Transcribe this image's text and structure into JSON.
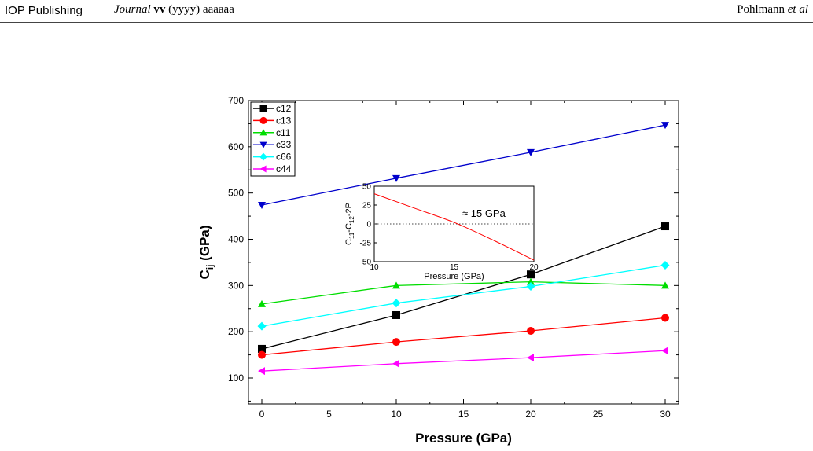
{
  "header": {
    "publisher": "IOP Publishing",
    "journal_name": "Journal",
    "journal_volume": "vv",
    "journal_year": "(yyyy)",
    "journal_article": "aaaaaa",
    "author": "Pohlmann",
    "author_suffix": "et al"
  },
  "chart_data": [
    {
      "type": "line",
      "xlabel": "Pressure (GPa)",
      "ylabel_main": "C",
      "ylabel_sub": "ij",
      "ylabel_unit": "(GPa)",
      "xlim": [
        -2,
        32
      ],
      "ylim": [
        50,
        700
      ],
      "x_ticks": [
        0,
        5,
        10,
        15,
        20,
        25,
        30
      ],
      "y_ticks": [
        100,
        200,
        300,
        400,
        500,
        600,
        700
      ],
      "legend_placement": "top-left",
      "x": [
        0,
        10,
        20,
        30
      ],
      "series": [
        {
          "name": "c12",
          "color": "#000000",
          "marker": "square",
          "values": [
            163,
            236,
            324,
            428
          ]
        },
        {
          "name": "c13",
          "color": "#ff0000",
          "marker": "circle",
          "values": [
            150,
            178,
            202,
            230
          ]
        },
        {
          "name": "c11",
          "color": "#00dd00",
          "marker": "triangle-up",
          "values": [
            260,
            300,
            308,
            300
          ]
        },
        {
          "name": "c33",
          "color": "#0000cc",
          "marker": "triangle-down",
          "values": [
            474,
            532,
            588,
            647
          ]
        },
        {
          "name": "c66",
          "color": "#00ffff",
          "marker": "diamond",
          "values": [
            212,
            262,
            298,
            344
          ]
        },
        {
          "name": "c44",
          "color": "#ff00ff",
          "marker": "triangle-left",
          "values": [
            115,
            131,
            144,
            159
          ]
        }
      ]
    },
    {
      "type": "line",
      "xlabel": "Pressure (GPa)",
      "ylabel_parts": [
        "C",
        "11",
        "-C",
        "12",
        "-2P"
      ],
      "xlim": [
        10,
        20
      ],
      "ylim": [
        -50,
        50
      ],
      "x_ticks": [
        10,
        15,
        20
      ],
      "y_ticks": [
        -50,
        -25,
        0,
        25,
        50
      ],
      "reference_line": 0,
      "annotation": "≈ 15 GPa",
      "series": [
        {
          "color": "#ff0000",
          "x": [
            10,
            12.5,
            15,
            17.5,
            20
          ],
          "values": [
            40,
            21,
            2,
            -22,
            -48
          ]
        }
      ]
    }
  ]
}
